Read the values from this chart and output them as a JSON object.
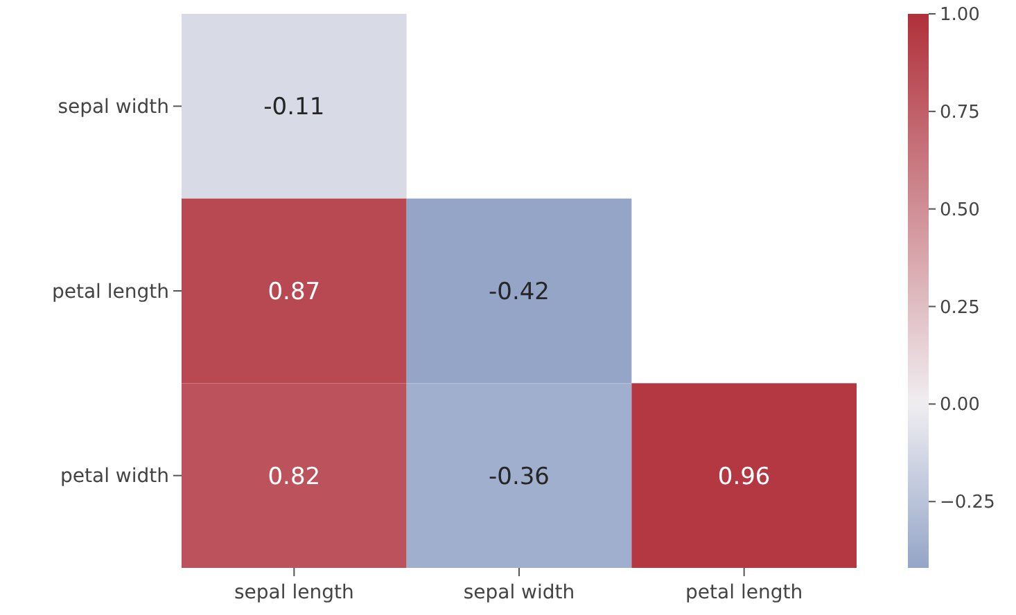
{
  "chart_data": {
    "type": "heatmap",
    "categories": [
      "sepal length",
      "sepal width",
      "petal length"
    ],
    "y_categories": [
      "sepal width",
      "petal length",
      "petal width"
    ],
    "cells": [
      [
        -0.11,
        null,
        null
      ],
      [
        0.87,
        -0.42,
        null
      ],
      [
        0.82,
        -0.36,
        0.96
      ]
    ],
    "clim": [
      -0.42,
      1.0
    ],
    "cticks": [
      {
        "value": -0.25,
        "label": "−0.25"
      },
      {
        "value": 0,
        "label": "0.00"
      },
      {
        "value": 0.25,
        "label": "0.25"
      },
      {
        "value": 0.5,
        "label": "0.50"
      },
      {
        "value": 0.75,
        "label": "0.75"
      },
      {
        "value": 1,
        "label": "1.00"
      }
    ],
    "data_labels": true
  }
}
